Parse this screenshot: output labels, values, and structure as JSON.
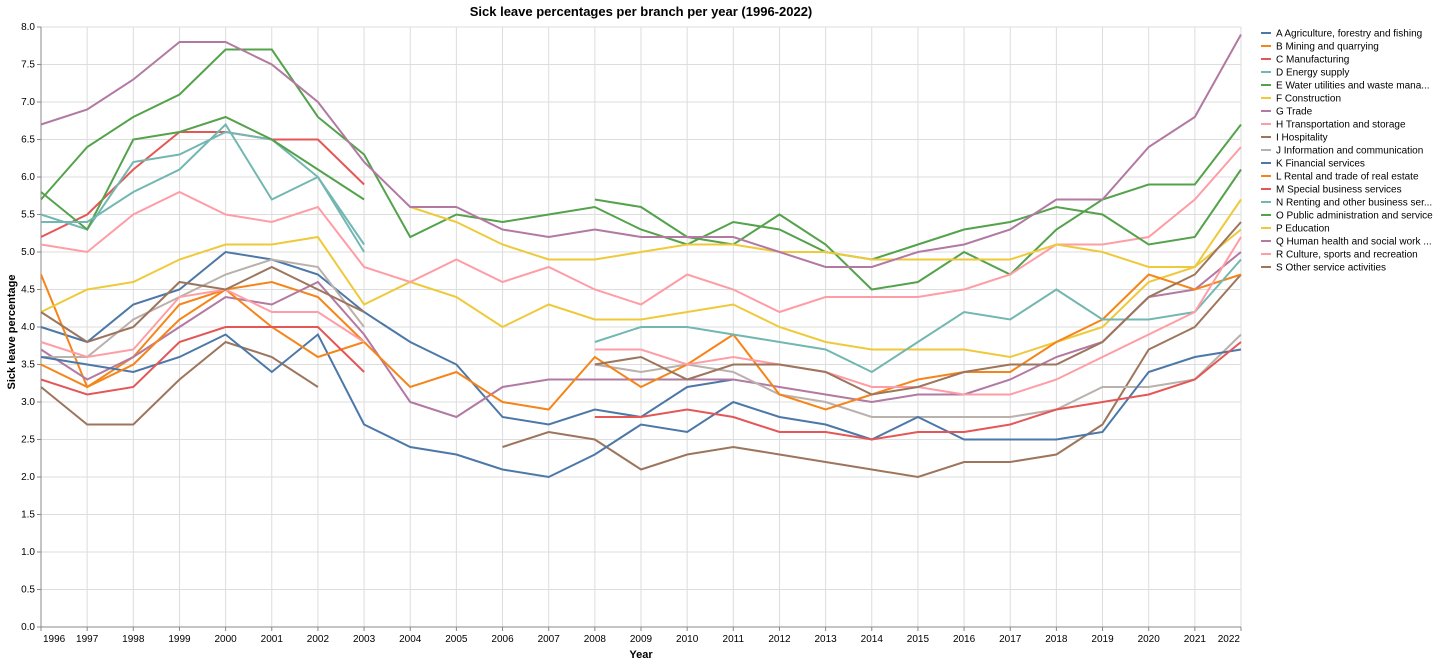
{
  "chart_data": {
    "type": "line",
    "title": "Sick leave percentages per branch per year (1996-2022)",
    "xlabel": "Year",
    "ylabel": "Sick leave percentage",
    "ylim": [
      0,
      8
    ],
    "yticks": [
      "0.0",
      "0.5",
      "1.0",
      "1.5",
      "2.0",
      "2.5",
      "3.0",
      "3.5",
      "4.0",
      "4.5",
      "5.0",
      "5.5",
      "6.0",
      "6.5",
      "7.0",
      "7.5",
      "8.0"
    ],
    "x": [
      "1996",
      "1997",
      "1998",
      "1999",
      "2000",
      "2001",
      "2002",
      "2003",
      "2004",
      "2005",
      "2006",
      "2007",
      "2008",
      "2009",
      "2010",
      "2011",
      "2012",
      "2013",
      "2014",
      "2015",
      "2016",
      "2017",
      "2018",
      "2019",
      "2020",
      "2021",
      "2022"
    ],
    "grid": true,
    "legend_position": "right",
    "series": [
      {
        "name": "A Agriculture, forestry and fishing",
        "color": "#4c78a8",
        "values": [
          4.0,
          3.8,
          4.3,
          4.5,
          5.0,
          4.9,
          4.7,
          4.2,
          3.8,
          3.5,
          2.8,
          2.7,
          2.9,
          2.8,
          3.2,
          3.3,
          null,
          null,
          null,
          null,
          null,
          null,
          null,
          null,
          null,
          null,
          null
        ]
      },
      {
        "name": "B Mining and quarrying",
        "color": "#f58518",
        "values": [
          4.7,
          3.2,
          3.6,
          4.3,
          4.5,
          4.6,
          4.4,
          3.8,
          null,
          null,
          null,
          null,
          null,
          null,
          null,
          null,
          null,
          null,
          null,
          null,
          null,
          null,
          null,
          null,
          null,
          null,
          null
        ]
      },
      {
        "name": "C Manufacturing",
        "color": "#e45756",
        "values": [
          5.2,
          5.5,
          6.1,
          6.6,
          6.6,
          6.5,
          6.5,
          5.9,
          null,
          null,
          null,
          null,
          null,
          null,
          null,
          null,
          null,
          null,
          null,
          null,
          null,
          null,
          null,
          null,
          null,
          null,
          null
        ]
      },
      {
        "name": "D Energy supply",
        "color": "#72b7b2",
        "values": [
          5.5,
          5.3,
          6.2,
          6.3,
          6.6,
          6.5,
          6.0,
          5.1,
          null,
          null,
          null,
          null,
          null,
          null,
          null,
          null,
          null,
          null,
          null,
          null,
          null,
          null,
          null,
          null,
          null,
          null,
          null
        ]
      },
      {
        "name": "E Water utilities and waste mana...",
        "color": "#54a24b",
        "values": [
          5.8,
          5.3,
          6.5,
          6.6,
          6.8,
          6.5,
          6.1,
          5.7,
          null,
          null,
          null,
          null,
          5.7,
          5.6,
          5.2,
          5.1,
          5.5,
          5.1,
          4.5,
          4.6,
          5.0,
          4.7,
          5.3,
          5.7,
          5.9,
          5.9,
          6.7
        ]
      },
      {
        "name": "F Construction",
        "color": "#eeca3b",
        "values": [
          4.2,
          4.5,
          4.6,
          4.9,
          5.1,
          5.1,
          5.2,
          4.3,
          4.6,
          4.4,
          4.0,
          4.3,
          4.1,
          4.1,
          4.2,
          4.3,
          4.0,
          3.8,
          3.7,
          3.7,
          3.7,
          3.6,
          3.8,
          4.0,
          4.6,
          4.8,
          5.7
        ]
      },
      {
        "name": "G Trade",
        "color": "#b279a2",
        "values": [
          3.7,
          3.3,
          3.6,
          4.0,
          4.4,
          4.3,
          4.6,
          3.9,
          3.0,
          2.8,
          3.2,
          3.3,
          3.3,
          3.3,
          3.3,
          3.3,
          3.2,
          3.1,
          3.0,
          3.1,
          3.1,
          3.3,
          3.6,
          3.8,
          4.4,
          4.5,
          5.0
        ]
      },
      {
        "name": "H Transportation and storage",
        "color": "#ff9da6",
        "values": [
          5.1,
          5.0,
          5.5,
          5.8,
          5.5,
          5.4,
          5.6,
          4.8,
          4.6,
          4.9,
          4.6,
          4.8,
          4.5,
          4.3,
          4.7,
          4.5,
          4.2,
          4.4,
          4.4,
          4.4,
          4.5,
          4.7,
          5.1,
          5.1,
          5.2,
          5.7,
          6.4
        ]
      },
      {
        "name": "I Hospitality",
        "color": "#9d755d",
        "values": [
          3.2,
          2.7,
          2.7,
          3.3,
          3.8,
          3.6,
          3.2,
          null,
          null,
          null,
          2.4,
          2.6,
          2.5,
          2.1,
          2.3,
          2.4,
          2.3,
          2.2,
          2.1,
          2.0,
          2.2,
          2.2,
          2.3,
          2.7,
          3.7,
          4.0,
          4.7
        ]
      },
      {
        "name": "J Information and communication",
        "color": "#bab0ac",
        "values": [
          3.6,
          3.6,
          4.1,
          4.4,
          4.7,
          4.9,
          4.8,
          4.0,
          null,
          null,
          null,
          null,
          3.5,
          3.4,
          3.5,
          3.4,
          3.1,
          3.0,
          2.8,
          2.8,
          2.8,
          2.8,
          2.9,
          3.2,
          3.2,
          3.3,
          3.9
        ]
      },
      {
        "name": "K Financial services",
        "color": "#4c78a8",
        "values": [
          3.6,
          3.5,
          3.4,
          3.6,
          3.9,
          3.4,
          3.9,
          2.7,
          2.4,
          2.3,
          2.1,
          2.0,
          2.3,
          2.7,
          2.6,
          3.0,
          2.8,
          2.7,
          2.5,
          2.8,
          2.5,
          2.5,
          2.5,
          2.6,
          3.4,
          3.6,
          3.7
        ]
      },
      {
        "name": "L Rental and trade of real estate",
        "color": "#f58518",
        "values": [
          3.5,
          3.2,
          3.5,
          4.1,
          4.5,
          4.0,
          3.6,
          3.8,
          3.2,
          3.4,
          3.0,
          2.9,
          3.6,
          3.2,
          3.5,
          3.9,
          3.1,
          2.9,
          3.1,
          3.3,
          3.4,
          3.4,
          3.8,
          4.1,
          4.7,
          4.5,
          4.7
        ]
      },
      {
        "name": "M Special business services",
        "color": "#e45756",
        "values": [
          3.3,
          3.1,
          3.2,
          3.8,
          4.0,
          4.0,
          4.0,
          3.4,
          null,
          null,
          null,
          null,
          2.8,
          2.8,
          2.9,
          2.8,
          2.6,
          2.6,
          2.5,
          2.6,
          2.6,
          2.7,
          2.9,
          3.0,
          3.1,
          3.3,
          3.8
        ]
      },
      {
        "name": "N Renting and other business ser...",
        "color": "#72b7b2",
        "values": [
          5.4,
          5.4,
          5.8,
          6.1,
          6.7,
          5.7,
          6.0,
          5.0,
          null,
          null,
          null,
          null,
          3.8,
          4.0,
          4.0,
          3.9,
          3.8,
          3.7,
          3.4,
          3.8,
          4.2,
          4.1,
          4.5,
          4.1,
          4.1,
          4.2,
          4.9
        ]
      },
      {
        "name": "O Public administration and service",
        "color": "#54a24b",
        "values": [
          5.7,
          6.4,
          6.8,
          7.1,
          7.7,
          7.7,
          6.8,
          6.3,
          5.2,
          5.5,
          5.4,
          5.5,
          5.6,
          5.3,
          5.1,
          5.4,
          5.3,
          5.0,
          4.9,
          5.1,
          5.3,
          5.4,
          5.6,
          5.5,
          5.1,
          5.2,
          6.1
        ]
      },
      {
        "name": "P Education",
        "color": "#eeca3b",
        "values": [
          null,
          null,
          null,
          null,
          null,
          null,
          null,
          null,
          5.6,
          5.4,
          5.1,
          4.9,
          4.9,
          5.0,
          5.1,
          5.1,
          5.0,
          5.0,
          4.9,
          4.9,
          4.9,
          4.9,
          5.1,
          5.0,
          4.8,
          4.8,
          5.3
        ]
      },
      {
        "name": "Q Human health and social work ...",
        "color": "#b279a2",
        "values": [
          6.7,
          6.9,
          7.3,
          7.8,
          7.8,
          7.5,
          7.0,
          6.2,
          5.6,
          5.6,
          5.3,
          5.2,
          5.3,
          5.2,
          5.2,
          5.2,
          5.0,
          4.8,
          4.8,
          5.0,
          5.1,
          5.3,
          5.7,
          5.7,
          6.4,
          6.8,
          7.9
        ]
      },
      {
        "name": "R Culture, sports and recreation",
        "color": "#ff9da6",
        "values": [
          3.8,
          3.6,
          3.7,
          4.4,
          4.5,
          4.2,
          4.2,
          3.8,
          null,
          null,
          null,
          null,
          3.7,
          3.7,
          3.5,
          3.6,
          3.5,
          3.4,
          3.2,
          3.2,
          3.1,
          3.1,
          3.3,
          3.6,
          3.9,
          4.2,
          5.2
        ]
      },
      {
        "name": "S Other service activities",
        "color": "#9d755d",
        "values": [
          4.2,
          3.8,
          4.0,
          4.6,
          4.5,
          4.8,
          4.5,
          4.2,
          null,
          null,
          null,
          null,
          3.5,
          3.6,
          3.3,
          3.5,
          3.5,
          3.4,
          3.1,
          3.2,
          3.4,
          3.5,
          3.5,
          3.8,
          4.4,
          4.7,
          5.4
        ]
      }
    ]
  }
}
